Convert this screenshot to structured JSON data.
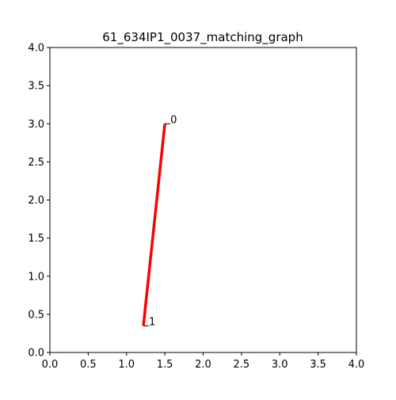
{
  "chart_data": {
    "type": "line",
    "title": "61_634IP1_0037_matching_graph",
    "xlabel": "",
    "ylabel": "",
    "xlim": [
      0.0,
      4.0
    ],
    "ylim": [
      0.0,
      4.0
    ],
    "xticks": [
      "0.0",
      "0.5",
      "1.0",
      "1.5",
      "2.0",
      "2.5",
      "3.0",
      "3.5",
      "4.0"
    ],
    "yticks": [
      "0.0",
      "0.5",
      "1.0",
      "1.5",
      "2.0",
      "2.5",
      "3.0",
      "3.5",
      "4.0"
    ],
    "grid": false,
    "nodes": [
      {
        "id": "0",
        "label": "0",
        "x": 1.5,
        "y": 3.0
      },
      {
        "id": "1",
        "label": "1",
        "x": 1.22,
        "y": 0.35
      }
    ],
    "edges": [
      {
        "from": "0",
        "to": "1",
        "color": "#ff0000"
      }
    ]
  }
}
